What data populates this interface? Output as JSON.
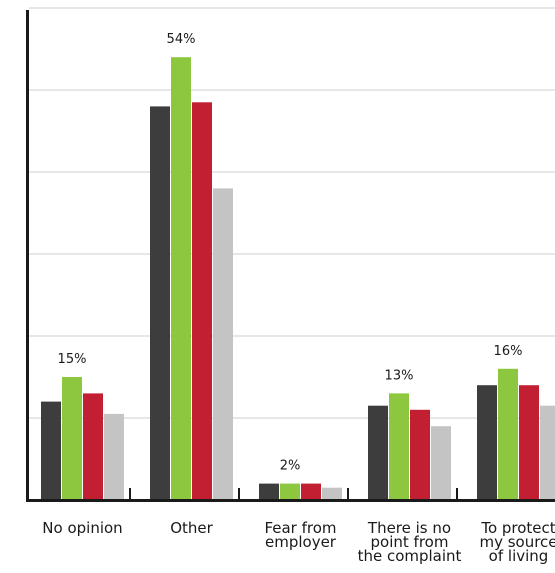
{
  "chart_data": {
    "type": "bar",
    "title": "",
    "xlabel": "",
    "ylabel": "",
    "ylim": [
      0,
      60
    ],
    "grid": true,
    "legend": "none",
    "categories": [
      [
        "No opinion"
      ],
      [
        "Other"
      ],
      [
        "Fear from",
        "employer"
      ],
      [
        "There is no",
        "point from",
        "the complaint"
      ],
      [
        "To protect",
        "my source",
        "of living"
      ]
    ],
    "series": [
      {
        "color": "#3d3d3d",
        "values": [
          12,
          48,
          2,
          11.5,
          14
        ]
      },
      {
        "color": "#8dc63f",
        "values": [
          15,
          54,
          2,
          13,
          16
        ]
      },
      {
        "color": "#c31f33",
        "values": [
          13,
          48.5,
          2,
          11,
          14
        ]
      },
      {
        "color": "#c4c4c4",
        "values": [
          10.5,
          38,
          1.5,
          9,
          11.5
        ]
      }
    ],
    "data_labels": [
      "15%",
      "54%",
      "2%",
      "13%",
      "16%"
    ]
  }
}
